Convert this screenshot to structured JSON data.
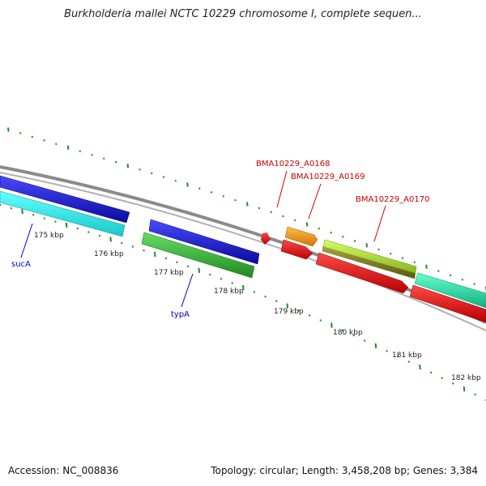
{
  "title": "Burkholderia mallei NCTC 10229 chromosome I, complete sequen...",
  "footer": {
    "accession": "Accession: NC_008836",
    "summary": "Topology: circular; Length: 3,458,208 bp; Genes: 3,384"
  },
  "scale": {
    "unit": "kbp",
    "ticks": [
      {
        "label": "175 kbp",
        "kbp": 175
      },
      {
        "label": "176 kbp",
        "kbp": 176
      },
      {
        "label": "177 kbp",
        "kbp": 177
      },
      {
        "label": "178 kbp",
        "kbp": 178
      },
      {
        "label": "179 kbp",
        "kbp": 179
      },
      {
        "label": "180 kbp",
        "kbp": 180
      },
      {
        "label": "181 kbp",
        "kbp": 181
      },
      {
        "label": "182 kbp",
        "kbp": 182
      }
    ]
  },
  "genes": [
    {
      "name": "sucA",
      "label_color": "#0000cc"
    },
    {
      "name": "typA",
      "label_color": "#0000cc"
    },
    {
      "name": "BMA10229_A0168",
      "label_color": "#cc0000"
    },
    {
      "name": "BMA10229_A0169",
      "label_color": "#cc0000"
    },
    {
      "name": "BMA10229_A0170",
      "label_color": "#cc0000"
    }
  ],
  "colors": {
    "backbone": "#8a8a8a",
    "tick": "#228b22",
    "blue": "#1a1add",
    "cyan": "#22f0f0",
    "green": "#3cb83c",
    "orange": "#f59a10",
    "red": "#ee1111",
    "lime": "#aaee33",
    "teal": "#22e8a8"
  }
}
